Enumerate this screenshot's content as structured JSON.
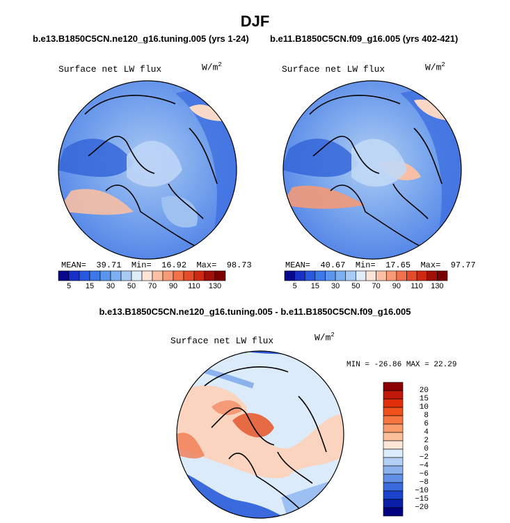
{
  "title": "DJF",
  "panels": [
    {
      "case": "b.e13.B1850C5CN.ne120_g16.tuning.005 (yrs 1-24)",
      "variable": "Surface net LW flux",
      "units": "W/m",
      "units_exp": "2",
      "stats": {
        "mean_label": "MEAN=",
        "mean": "39.71",
        "min_label": "Min=",
        "min": "16.92",
        "max_label": "Max=",
        "max": "98.73"
      }
    },
    {
      "case": "b.e11.B1850C5CN.f09_g16.005 (yrs 402-421)",
      "variable": "Surface net LW flux",
      "units": "W/m",
      "units_exp": "2",
      "stats": {
        "mean_label": "MEAN=",
        "mean": "40.67",
        "min_label": "Min=",
        "min": "17.65",
        "max_label": "Max=",
        "max": "97.77"
      }
    }
  ],
  "diff_panel": {
    "title": "b.e13.B1850C5CN.ne120_g16.tuning.005 - b.e11.B1850C5CN.f09_g16.005",
    "variable": "Surface net LW flux",
    "units": "W/m",
    "units_exp": "2",
    "stats": "MIN = -26.86 MAX =  22.29"
  },
  "colorbar_top": {
    "labels": [
      "5",
      "15",
      "30",
      "50",
      "70",
      "90",
      "110",
      "130"
    ],
    "colors": [
      "#08088a",
      "#1830c8",
      "#2858e0",
      "#3c78e8",
      "#5a96ee",
      "#7cb0f2",
      "#a8cbf4",
      "#dfecfa",
      "#fde4d8",
      "#fbc0a6",
      "#f79a78",
      "#f0724c",
      "#e44c2a",
      "#cc2a12",
      "#a01006",
      "#7a0000"
    ]
  },
  "colorbar_diff": {
    "labels": [
      "20",
      "15",
      "10",
      "8",
      "6",
      "4",
      "2",
      "0",
      "−2",
      "−4",
      "−6",
      "−8",
      "−10",
      "−15",
      "−20"
    ],
    "colors": [
      "#8b0000",
      "#c0180a",
      "#e0300c",
      "#f0501c",
      "#f57640",
      "#f89a6a",
      "#fbc09a",
      "#fde6d6",
      "#dcebfa",
      "#b4d0f4",
      "#8cb2ee",
      "#6290e6",
      "#3a6ade",
      "#1a44cc",
      "#0a1ea8",
      "#000080"
    ]
  }
}
